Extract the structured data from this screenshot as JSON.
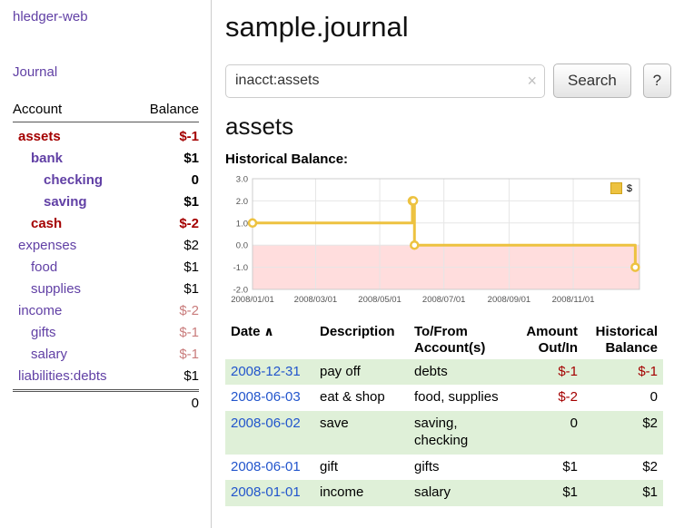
{
  "colors": {
    "link_purple": "#6140a5",
    "date_blue": "#2255cc",
    "negative_red": "#a40000",
    "muted_negative": "#c97c7c",
    "row_green": "#dff0d8",
    "chart_gold": "#edc240",
    "chart_negative_region": "#ffdddd"
  },
  "app": {
    "title": "hledger-web"
  },
  "sidebar": {
    "journal_link": "Journal",
    "header": {
      "account": "Account",
      "balance": "Balance"
    },
    "accounts": [
      {
        "name": "assets",
        "balance": "$-1",
        "indent": 0,
        "bold": true,
        "name_negative": true,
        "balance_class": "neg"
      },
      {
        "name": "bank",
        "balance": "$1",
        "indent": 1,
        "bold": true,
        "name_negative": false,
        "balance_class": "norm"
      },
      {
        "name": "checking",
        "balance": "0",
        "indent": 2,
        "bold": true,
        "name_negative": false,
        "balance_class": "norm"
      },
      {
        "name": "saving",
        "balance": "$1",
        "indent": 2,
        "bold": true,
        "name_negative": false,
        "balance_class": "norm"
      },
      {
        "name": "cash",
        "balance": "$-2",
        "indent": 1,
        "bold": true,
        "name_negative": true,
        "balance_class": "neg"
      },
      {
        "name": "expenses",
        "balance": "$2",
        "indent": 0,
        "bold": false,
        "name_negative": false,
        "balance_class": "norm"
      },
      {
        "name": "food",
        "balance": "$1",
        "indent": 1,
        "bold": false,
        "name_negative": false,
        "balance_class": "norm"
      },
      {
        "name": "supplies",
        "balance": "$1",
        "indent": 1,
        "bold": false,
        "name_negative": false,
        "balance_class": "norm"
      },
      {
        "name": "income",
        "balance": "$-2",
        "indent": 0,
        "bold": false,
        "name_negative": false,
        "balance_class": "muted"
      },
      {
        "name": "gifts",
        "balance": "$-1",
        "indent": 1,
        "bold": false,
        "name_negative": false,
        "balance_class": "muted"
      },
      {
        "name": "salary",
        "balance": "$-1",
        "indent": 1,
        "bold": false,
        "name_negative": false,
        "balance_class": "muted"
      },
      {
        "name": "liabilities:debts",
        "balance": "$1",
        "indent": 0,
        "bold": false,
        "name_negative": false,
        "balance_class": "norm"
      }
    ],
    "total": "0"
  },
  "main": {
    "title": "sample.journal",
    "search": {
      "value": "inacct:assets",
      "clear_icon": "×",
      "button_label": "Search",
      "help_label": "?"
    },
    "account_heading": "assets",
    "chart_label": "Historical Balance:"
  },
  "register": {
    "sort_icon": "∧",
    "headers": [
      {
        "lines": [
          "Date"
        ],
        "align": "left",
        "sort": true
      },
      {
        "lines": [
          "Description"
        ],
        "align": "left",
        "sort": false
      },
      {
        "lines": [
          "To/From",
          "Account(s)"
        ],
        "align": "left",
        "sort": false
      },
      {
        "lines": [
          "Amount",
          "Out/In"
        ],
        "align": "right",
        "sort": false
      },
      {
        "lines": [
          "Historical",
          "Balance"
        ],
        "align": "right",
        "sort": false
      }
    ],
    "rows": [
      {
        "date": "2008-12-31",
        "description": "pay off",
        "accounts": "debts",
        "amount": "$-1",
        "amount_negative": true,
        "balance": "$-1",
        "balance_negative": true
      },
      {
        "date": "2008-06-03",
        "description": "eat & shop",
        "accounts": "food, supplies",
        "amount": "$-2",
        "amount_negative": true,
        "balance": "0",
        "balance_negative": false
      },
      {
        "date": "2008-06-02",
        "description": "save",
        "accounts": "saving, checking",
        "amount": "0",
        "amount_negative": false,
        "balance": "$2",
        "balance_negative": false
      },
      {
        "date": "2008-06-01",
        "description": "gift",
        "accounts": "gifts",
        "amount": "$1",
        "amount_negative": false,
        "balance": "$2",
        "balance_negative": false
      },
      {
        "date": "2008-01-01",
        "description": "income",
        "accounts": "salary",
        "amount": "$1",
        "amount_negative": false,
        "balance": "$1",
        "balance_negative": false
      }
    ]
  },
  "chart_data": {
    "type": "line",
    "title": "Historical Balance",
    "legend_position": "top-right",
    "grid": true,
    "x_unit": "date (days since 2008-01-01)",
    "xlim": [
      0,
      368
    ],
    "ylim": [
      -2,
      3
    ],
    "y_ticks": [
      3.0,
      2.0,
      1.0,
      0.0,
      -1.0,
      -2.0
    ],
    "x_ticks": [
      {
        "pos": 0,
        "label": "2008/01/01"
      },
      {
        "pos": 60,
        "label": "2008/03/01"
      },
      {
        "pos": 121,
        "label": "2008/05/01"
      },
      {
        "pos": 182,
        "label": "2008/07/01"
      },
      {
        "pos": 244,
        "label": "2008/09/01"
      },
      {
        "pos": 305,
        "label": "2008/11/01"
      }
    ],
    "series": [
      {
        "name": "$",
        "color": "#edc240",
        "step": true,
        "path": [
          [
            0,
            1
          ],
          [
            152,
            1
          ],
          [
            152,
            2
          ],
          [
            154,
            2
          ],
          [
            154,
            0
          ],
          [
            364,
            0
          ],
          [
            364,
            -1
          ]
        ],
        "markers": [
          [
            0,
            1
          ],
          [
            152,
            2
          ],
          [
            153,
            2
          ],
          [
            154,
            0
          ],
          [
            364,
            -1
          ]
        ]
      }
    ],
    "negative_region": {
      "from": 0,
      "to": -2,
      "color": "#ffdddd"
    },
    "balances_by_date": [
      {
        "date": "2008-01-01",
        "balance": 1
      },
      {
        "date": "2008-06-01",
        "balance": 2
      },
      {
        "date": "2008-06-02",
        "balance": 2
      },
      {
        "date": "2008-06-03",
        "balance": 0
      },
      {
        "date": "2008-12-31",
        "balance": -1
      }
    ]
  }
}
